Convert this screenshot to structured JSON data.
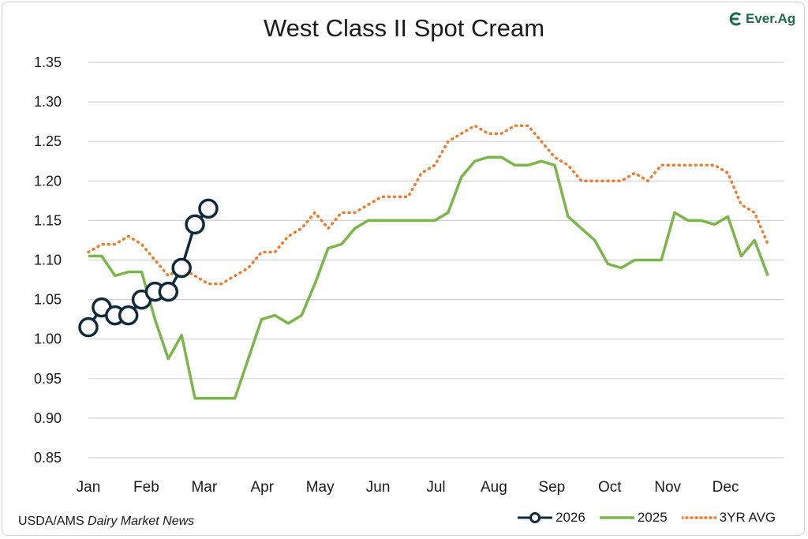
{
  "title": "West Class II Spot Cream",
  "brand": {
    "logo_text": "Ever.Ag",
    "logo_color": "#1c6b4a"
  },
  "source": {
    "prefix": "USDA/AMS ",
    "publication": "Dairy Market News"
  },
  "legend": [
    {
      "label": "2026",
      "color": "#0f2a3d",
      "style": "line-marker"
    },
    {
      "label": "2025",
      "color": "#7ab648",
      "style": "solid"
    },
    {
      "label": "3YR AVG",
      "color": "#ec7c30",
      "style": "dotted"
    }
  ],
  "chart_data": {
    "type": "line",
    "title": "West Class II Spot Cream",
    "x_ticks": [
      "Jan",
      "Feb",
      "Mar",
      "Apr",
      "May",
      "Jun",
      "Jul",
      "Aug",
      "Sep",
      "Oct",
      "Nov",
      "Dec"
    ],
    "y_ticks": [
      "0.85",
      "0.90",
      "0.95",
      "1.00",
      "1.05",
      "1.10",
      "1.15",
      "1.20",
      "1.25",
      "1.30",
      "1.35"
    ],
    "ylim": [
      0.85,
      1.35
    ],
    "x_range_months": [
      0,
      12
    ],
    "grid": true,
    "legend_position": "bottom-right",
    "series": [
      {
        "name": "3YR AVG",
        "color": "#ec7c30",
        "style": "dotted",
        "x": [
          0.0,
          0.23,
          0.46,
          0.69,
          0.92,
          1.15,
          1.38,
          1.61,
          1.84,
          2.07,
          2.3,
          2.53,
          2.76,
          2.99,
          3.22,
          3.45,
          3.68,
          3.91,
          4.14,
          4.37,
          4.6,
          4.83,
          5.06,
          5.29,
          5.52,
          5.75,
          5.98,
          6.21,
          6.44,
          6.67,
          6.9,
          7.13,
          7.36,
          7.59,
          7.82,
          8.05,
          8.28,
          8.51,
          8.74,
          8.97,
          9.2,
          9.43,
          9.66,
          9.89,
          10.12,
          10.35,
          10.58,
          10.81,
          11.04,
          11.27,
          11.5,
          11.73
        ],
        "values": [
          1.11,
          1.12,
          1.12,
          1.13,
          1.12,
          1.1,
          1.08,
          1.09,
          1.08,
          1.07,
          1.07,
          1.08,
          1.09,
          1.11,
          1.11,
          1.13,
          1.14,
          1.16,
          1.14,
          1.16,
          1.16,
          1.17,
          1.18,
          1.18,
          1.18,
          1.21,
          1.22,
          1.25,
          1.26,
          1.27,
          1.26,
          1.26,
          1.27,
          1.27,
          1.25,
          1.23,
          1.22,
          1.2,
          1.2,
          1.2,
          1.2,
          1.21,
          1.2,
          1.22,
          1.22,
          1.22,
          1.22,
          1.22,
          1.21,
          1.17,
          1.16,
          1.12
        ]
      },
      {
        "name": "2025",
        "color": "#7ab648",
        "style": "solid",
        "x": [
          0.0,
          0.23,
          0.46,
          0.69,
          0.92,
          1.15,
          1.38,
          1.61,
          1.84,
          2.07,
          2.3,
          2.53,
          2.76,
          2.99,
          3.22,
          3.45,
          3.68,
          3.91,
          4.14,
          4.37,
          4.6,
          4.83,
          5.06,
          5.29,
          5.52,
          5.75,
          5.98,
          6.21,
          6.44,
          6.67,
          6.9,
          7.13,
          7.36,
          7.59,
          7.82,
          8.05,
          8.28,
          8.51,
          8.74,
          8.97,
          9.2,
          9.43,
          9.66,
          9.89,
          10.12,
          10.35,
          10.58,
          10.81,
          11.04,
          11.27,
          11.5,
          11.73
        ],
        "values": [
          1.105,
          1.105,
          1.08,
          1.085,
          1.085,
          1.025,
          0.975,
          1.005,
          0.925,
          0.925,
          0.925,
          0.925,
          0.975,
          1.025,
          1.03,
          1.02,
          1.03,
          1.07,
          1.115,
          1.12,
          1.14,
          1.15,
          1.15,
          1.15,
          1.15,
          1.15,
          1.15,
          1.16,
          1.205,
          1.225,
          1.23,
          1.23,
          1.22,
          1.22,
          1.225,
          1.22,
          1.155,
          1.14,
          1.125,
          1.095,
          1.09,
          1.1,
          1.1,
          1.1,
          1.16,
          1.15,
          1.15,
          1.145,
          1.155,
          1.105,
          1.125,
          1.08
        ]
      },
      {
        "name": "2026",
        "color": "#0f2a3d",
        "style": "line-marker",
        "x": [
          0.0,
          0.23,
          0.46,
          0.69,
          0.92,
          1.15,
          1.38,
          1.61,
          1.84,
          2.07
        ],
        "values": [
          1.015,
          1.04,
          1.03,
          1.03,
          1.05,
          1.06,
          1.06,
          1.09,
          1.145,
          1.165
        ]
      }
    ]
  }
}
